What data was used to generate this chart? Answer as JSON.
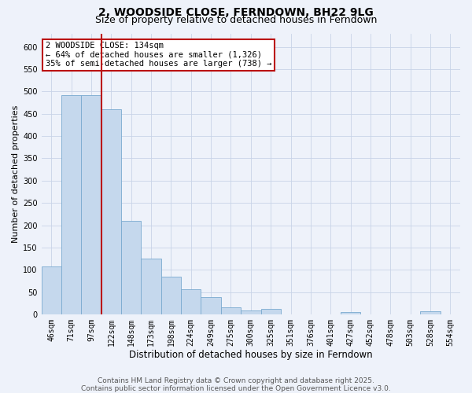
{
  "title": "2, WOODSIDE CLOSE, FERNDOWN, BH22 9LG",
  "subtitle": "Size of property relative to detached houses in Ferndown",
  "xlabel": "Distribution of detached houses by size in Ferndown",
  "ylabel": "Number of detached properties",
  "bar_labels": [
    "46sqm",
    "71sqm",
    "97sqm",
    "122sqm",
    "148sqm",
    "173sqm",
    "198sqm",
    "224sqm",
    "249sqm",
    "275sqm",
    "300sqm",
    "325sqm",
    "351sqm",
    "376sqm",
    "401sqm",
    "427sqm",
    "452sqm",
    "478sqm",
    "503sqm",
    "528sqm",
    "554sqm"
  ],
  "bar_values": [
    107,
    492,
    492,
    460,
    210,
    125,
    85,
    57,
    40,
    16,
    10,
    12,
    0,
    0,
    0,
    5,
    0,
    0,
    0,
    7,
    0
  ],
  "bar_color": "#c5d8ed",
  "bar_edge_color": "#7aaad0",
  "vline_index": 3,
  "vline_color": "#bb1111",
  "annotation_text": "2 WOODSIDE CLOSE: 134sqm\n← 64% of detached houses are smaller (1,326)\n35% of semi-detached houses are larger (738) →",
  "annotation_box_color": "#ffffff",
  "annotation_box_edge": "#bb1111",
  "ylim": [
    0,
    630
  ],
  "yticks": [
    0,
    50,
    100,
    150,
    200,
    250,
    300,
    350,
    400,
    450,
    500,
    550,
    600
  ],
  "grid_color": "#c8d4e8",
  "background_color": "#eef2fa",
  "footer": "Contains HM Land Registry data © Crown copyright and database right 2025.\nContains public sector information licensed under the Open Government Licence v3.0.",
  "title_fontsize": 10,
  "subtitle_fontsize": 9,
  "xlabel_fontsize": 8.5,
  "ylabel_fontsize": 8,
  "tick_fontsize": 7,
  "footer_fontsize": 6.5,
  "ann_fontsize": 7.5
}
